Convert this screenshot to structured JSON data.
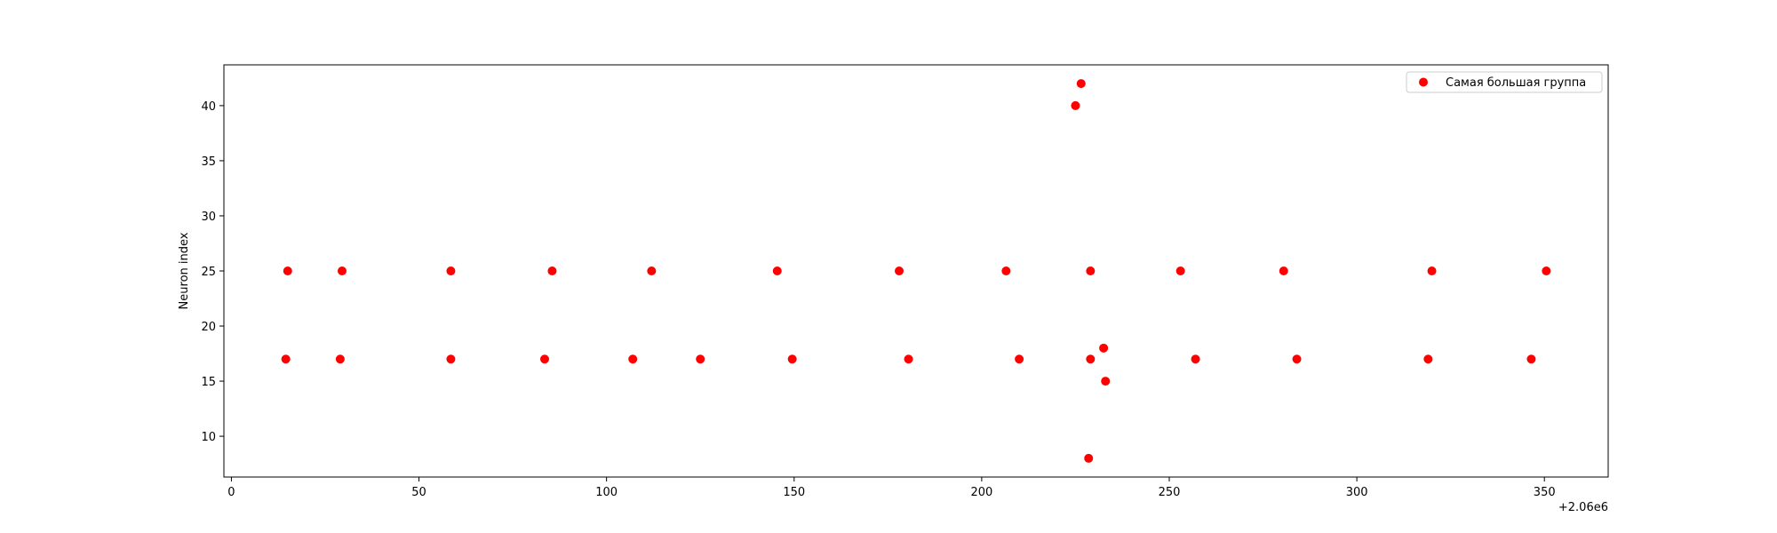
{
  "chart_data": {
    "type": "scatter",
    "title": "",
    "xlabel": "",
    "ylabel": "Neuron index",
    "x_offset_label": "+2.06e6",
    "xlim": [
      -2,
      367
    ],
    "ylim": [
      6.3,
      43.7
    ],
    "x_ticks": [
      0,
      50,
      100,
      150,
      200,
      250,
      300,
      350
    ],
    "y_ticks": [
      10,
      15,
      20,
      25,
      30,
      35,
      40
    ],
    "grid": false,
    "legend_position": "top-right",
    "series": [
      {
        "name": "Самая большая группа",
        "color": "#ff0000",
        "marker": "circle",
        "points": [
          [
            15,
            25
          ],
          [
            29.5,
            25
          ],
          [
            58.5,
            25
          ],
          [
            85.5,
            25
          ],
          [
            112,
            25
          ],
          [
            145.5,
            25
          ],
          [
            178,
            25
          ],
          [
            206.5,
            25
          ],
          [
            229,
            25
          ],
          [
            253,
            25
          ],
          [
            280.5,
            25
          ],
          [
            320,
            25
          ],
          [
            350.5,
            25
          ],
          [
            14.5,
            17
          ],
          [
            29,
            17
          ],
          [
            58.5,
            17
          ],
          [
            83.5,
            17
          ],
          [
            107,
            17
          ],
          [
            125,
            17
          ],
          [
            149.5,
            17
          ],
          [
            180.5,
            17
          ],
          [
            210,
            17
          ],
          [
            229,
            17
          ],
          [
            257,
            17
          ],
          [
            284,
            17
          ],
          [
            319,
            17
          ],
          [
            346.5,
            17
          ],
          [
            225,
            40
          ],
          [
            226.5,
            42
          ],
          [
            232.5,
            18
          ],
          [
            233,
            15
          ],
          [
            228.5,
            8
          ]
        ]
      }
    ]
  }
}
